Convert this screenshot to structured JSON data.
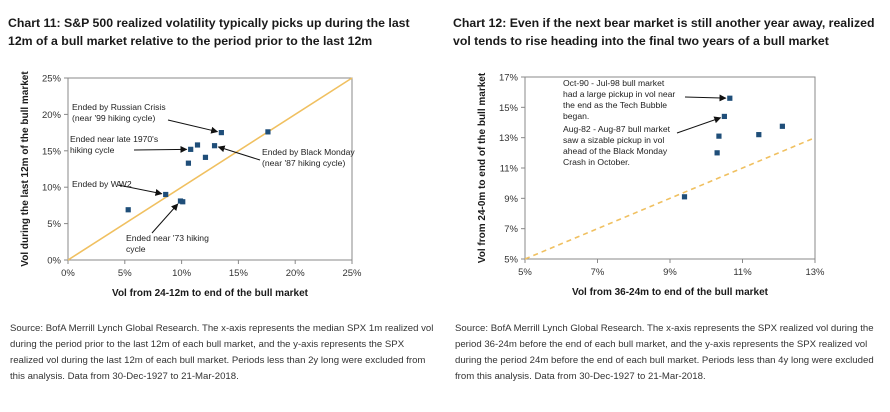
{
  "charts": [
    {
      "title": "Chart 11: S&P 500 realized volatility typically picks up during the last 12m of a bull market relative to the period prior to the last 12m",
      "source": "Source: BofA Merrill Lynch Global Research. The x-axis represents the median SPX 1m realized vol during the period prior to the last 12m of each bull market, and the y-axis represents the SPX realized vol during the last 12m of each bull market. Periods less than 2y long were excluded from this analysis. Data from 30-Dec-1927 to 21-Mar-2018."
    },
    {
      "title": "Chart 12: Even if the next bear market is still another year away, realized vol tends to rise heading into the final two years of a bull market",
      "source": "Source: BofA Merrill Lynch Global Research. The x-axis represents the SPX realized vol during the period 36-24m before the end of each bull market, and the y-axis represents the SPX realized vol during the period 24m before the end of each bull market. Periods less than 4y long were excluded from this analysis. Data from 30-Dec-1927 to 21-Mar-2018."
    }
  ],
  "chart_data": [
    {
      "type": "scatter",
      "title": "Chart 11: S&P 500 realized volatility typically picks up during the last 12m of a bull market relative to the period prior to the last 12m",
      "xlabel": "Vol from 24-12m to end of the bull market",
      "ylabel": "Vol during the last 12m of the bull market",
      "xlim": [
        0,
        25
      ],
      "ylim": [
        0,
        25
      ],
      "x_ticks": [
        "0%",
        "5%",
        "10%",
        "15%",
        "20%",
        "25%"
      ],
      "y_ticks": [
        "0%",
        "5%",
        "10%",
        "15%",
        "20%",
        "25%"
      ],
      "x_tick_values": [
        0,
        5,
        10,
        15,
        20,
        25
      ],
      "y_tick_values": [
        0,
        5,
        10,
        15,
        20,
        25
      ],
      "reference_line": {
        "style": "solid",
        "color": "#f0c060",
        "from": [
          0,
          0
        ],
        "to": [
          25,
          25
        ]
      },
      "marker_color": "#1f4e79",
      "points": [
        {
          "x": 5.3,
          "y": 6.9
        },
        {
          "x": 8.6,
          "y": 9.0
        },
        {
          "x": 9.9,
          "y": 8.1
        },
        {
          "x": 10.1,
          "y": 8.0
        },
        {
          "x": 10.6,
          "y": 13.3
        },
        {
          "x": 10.8,
          "y": 15.2
        },
        {
          "x": 11.4,
          "y": 15.8
        },
        {
          "x": 12.1,
          "y": 14.1
        },
        {
          "x": 12.9,
          "y": 15.7
        },
        {
          "x": 13.5,
          "y": 17.5
        },
        {
          "x": 17.6,
          "y": 17.6
        }
      ],
      "annotations": [
        {
          "lines": [
            "Ended by Russian Crisis",
            "(near '99 hiking cycle)"
          ],
          "target": [
            13.5,
            17.5
          ]
        },
        {
          "lines": [
            "Ended near late 1970's",
            "hiking cycle"
          ],
          "target": [
            10.8,
            15.2
          ]
        },
        {
          "lines": [
            "Ended by Black Monday",
            "(near '87 hiking cycle)"
          ],
          "target": [
            12.9,
            15.7
          ]
        },
        {
          "lines": [
            "Ended by WW2"
          ],
          "target": [
            8.6,
            9.0
          ]
        },
        {
          "lines": [
            "Ended near '73 hiking",
            "cycle"
          ],
          "target": [
            9.9,
            8.1
          ]
        }
      ]
    },
    {
      "type": "scatter",
      "title": "Chart 12: Even if the next bear market is still another year away, realized vol tends to rise heading into the final two years of a bull market",
      "xlabel": "Vol from 36-24m to end of the bull market",
      "ylabel": "Vol from 24-0m to end of the bull market",
      "xlim": [
        5,
        13
      ],
      "ylim": [
        5,
        17
      ],
      "x_ticks": [
        "5%",
        "7%",
        "9%",
        "11%",
        "13%"
      ],
      "y_ticks": [
        "5%",
        "7%",
        "9%",
        "11%",
        "13%",
        "15%",
        "17%"
      ],
      "x_tick_values": [
        5,
        7,
        9,
        11,
        13
      ],
      "y_tick_values": [
        5,
        7,
        9,
        11,
        13,
        15,
        17
      ],
      "reference_line": {
        "style": "dashed",
        "color": "#f0c060",
        "from": [
          5,
          5
        ],
        "to": [
          13,
          13
        ]
      },
      "marker_color": "#1f4e79",
      "points": [
        {
          "x": 9.4,
          "y": 9.1
        },
        {
          "x": 10.3,
          "y": 12.0
        },
        {
          "x": 10.35,
          "y": 13.1
        },
        {
          "x": 10.5,
          "y": 14.4
        },
        {
          "x": 10.65,
          "y": 15.6
        },
        {
          "x": 11.45,
          "y": 13.2
        },
        {
          "x": 12.1,
          "y": 13.75
        }
      ],
      "annotations": [
        {
          "lines": [
            "Oct-90 - Jul-98 bull market",
            "had a large pickup in vol near",
            "the end as the Tech Bubble",
            "began."
          ],
          "target": [
            10.65,
            15.6
          ]
        },
        {
          "lines": [
            "Aug-82 - Aug-87 bull market",
            "saw a sizable pickup in vol",
            "ahead of the Black Monday",
            "Crash in October."
          ],
          "target": [
            10.5,
            14.4
          ]
        }
      ]
    }
  ]
}
